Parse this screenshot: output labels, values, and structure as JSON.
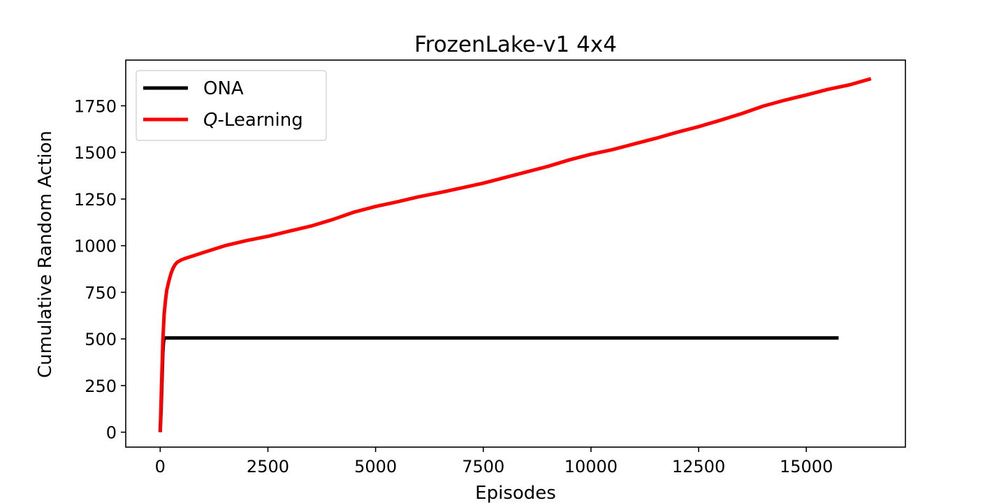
{
  "chart_data": {
    "type": "line",
    "title": "FrozenLake-v1 4x4",
    "xlabel": "Episodes",
    "ylabel": "Cumulative Random Action",
    "xlim": [
      -800,
      17300
    ],
    "ylim": [
      -80,
      1995
    ],
    "xticks": [
      0,
      2500,
      5000,
      7500,
      10000,
      12500,
      15000
    ],
    "yticks": [
      0,
      250,
      500,
      750,
      1000,
      1250,
      1500,
      1750
    ],
    "grid": false,
    "legend_position": "top-left",
    "series": [
      {
        "name": "ONA",
        "legend_prefix": "",
        "legend_italic": "",
        "legend_suffix": "ONA",
        "color": "#000000",
        "x": [
          0,
          20,
          45,
          60,
          75,
          90,
          15750
        ],
        "y": [
          0,
          120,
          300,
          420,
          480,
          505,
          505
        ]
      },
      {
        "name": "Q-Learning",
        "legend_prefix": "",
        "legend_italic": "Q",
        "legend_suffix": "-Learning",
        "color": "#ff0000",
        "x": [
          0,
          30,
          60,
          90,
          120,
          150,
          200,
          250,
          300,
          350,
          400,
          500,
          600,
          800,
          1000,
          1500,
          2000,
          2500,
          3000,
          3500,
          4000,
          4500,
          5000,
          5500,
          6000,
          6500,
          7000,
          7500,
          8000,
          8500,
          9000,
          9500,
          10000,
          10500,
          11000,
          11500,
          12000,
          12500,
          13000,
          13500,
          14000,
          14500,
          15000,
          15500,
          16000,
          16500
        ],
        "y": [
          0,
          250,
          480,
          630,
          700,
          760,
          810,
          850,
          880,
          900,
          912,
          925,
          933,
          948,
          963,
          1000,
          1027,
          1050,
          1078,
          1105,
          1140,
          1180,
          1210,
          1235,
          1262,
          1285,
          1310,
          1335,
          1365,
          1395,
          1425,
          1460,
          1490,
          1515,
          1545,
          1575,
          1608,
          1638,
          1672,
          1708,
          1748,
          1780,
          1808,
          1838,
          1862,
          1895
        ]
      }
    ]
  }
}
